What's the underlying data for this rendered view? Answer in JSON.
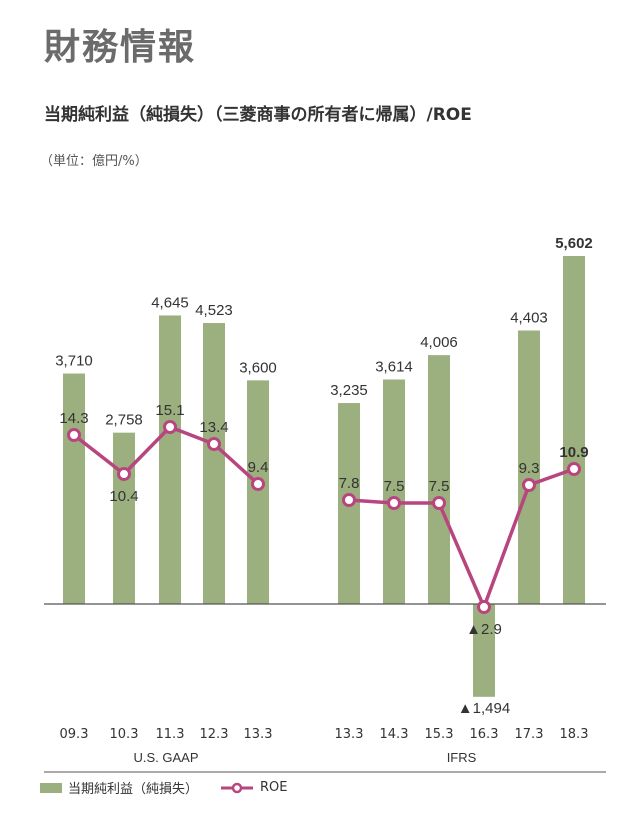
{
  "header": {
    "page_title": "財務情報",
    "chart_title": "当期純利益（純損失）（三菱商事の所有者に帰属）/ROE",
    "unit": "（単位：億円/%）"
  },
  "legend": {
    "bar_label": "当期純利益（純損失）",
    "line_label": "ROE"
  },
  "colors": {
    "bar": "#9caf7e",
    "line": "#b8457f",
    "axis": "#555555"
  },
  "chart_data": {
    "type": "bar",
    "categories": [
      "09.3",
      "10.3",
      "11.3",
      "12.3",
      "13.3",
      "13.3",
      "14.3",
      "15.3",
      "16.3",
      "17.3",
      "18.3"
    ],
    "groups": [
      {
        "name": "U.S. GAAP",
        "categories": [
          "09.3",
          "10.3",
          "11.3",
          "12.3",
          "13.3"
        ]
      },
      {
        "name": "IFRS",
        "categories": [
          "13.3",
          "14.3",
          "15.3",
          "16.3",
          "17.3",
          "18.3"
        ]
      }
    ],
    "series": [
      {
        "name": "当期純利益（純損失）",
        "type": "bar",
        "values": [
          3710,
          2758,
          4645,
          4523,
          3600,
          3235,
          3614,
          4006,
          -1494,
          4403,
          5602
        ],
        "labels": [
          "3,710",
          "2,758",
          "4,645",
          "4,523",
          "3,600",
          "3,235",
          "3,614",
          "4,006",
          "▲1,494",
          "4,403",
          "5,602"
        ]
      },
      {
        "name": "ROE",
        "type": "line",
        "values": [
          14.3,
          10.4,
          15.1,
          13.4,
          9.4,
          7.8,
          7.5,
          7.5,
          -2.9,
          9.3,
          10.9
        ],
        "labels": [
          "14.3",
          "10.4",
          "15.1",
          "13.4",
          "9.4",
          "7.8",
          "7.5",
          "7.5",
          "▲2.9",
          "9.3",
          "10.9"
        ]
      }
    ],
    "highlight_last": true
  }
}
